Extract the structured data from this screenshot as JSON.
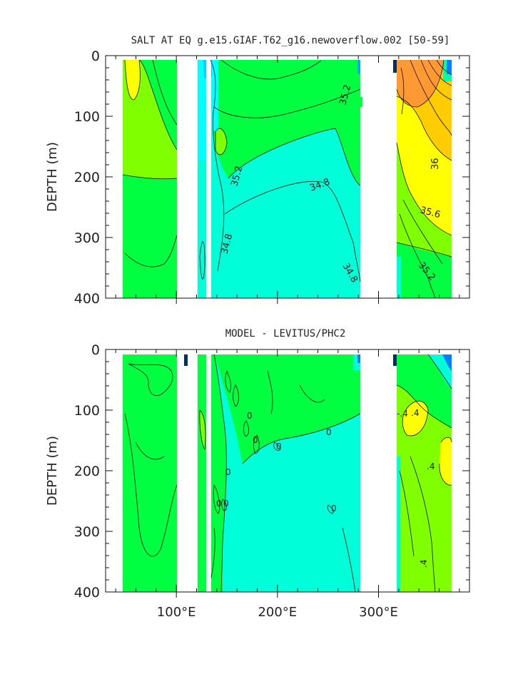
{
  "colors": {
    "cyan": "#00ffff",
    "aqua": "#00ffd8",
    "teal": "#00f5b0",
    "green": "#00ff40",
    "lime": "#80ff00",
    "yellow": "#ffff00",
    "gold": "#ffcc00",
    "orange": "#ff9933",
    "deep_orange": "#ff7f1f",
    "blue": "#0080ff",
    "navy": "#00305a"
  },
  "chart_data": [
    {
      "type": "heatmap",
      "title": "SALT AT EQ g.e15.GIAF.T62_g16.newoverflow.002 [50-59]",
      "ylabel": "DEPTH (m)",
      "xlabel": "",
      "x_range": [
        30,
        390
      ],
      "ylim": [
        400,
        0
      ],
      "y_ticks": [
        "0",
        "100",
        "200",
        "300",
        "400"
      ],
      "x_ticks": [],
      "contour_labels": [
        "35.2",
        "35.2",
        "34.8",
        "34.8",
        "34.8",
        "36",
        "35.6",
        "35.2"
      ]
    },
    {
      "type": "heatmap",
      "title": "MODEL - LEVITUS/PHC2",
      "ylabel": "DEPTH (m)",
      "xlabel": "",
      "x_range": [
        30,
        390
      ],
      "ylim": [
        400,
        0
      ],
      "y_ticks": [
        "0",
        "100",
        "200",
        "300",
        "400"
      ],
      "x_ticks": [
        "100°E",
        "200°E",
        "300°E"
      ],
      "contour_labels": [
        "0",
        "0",
        "0",
        "0",
        "0",
        "0",
        "0",
        "0",
        ".4",
        ".4",
        ".4",
        "-.4"
      ]
    }
  ]
}
